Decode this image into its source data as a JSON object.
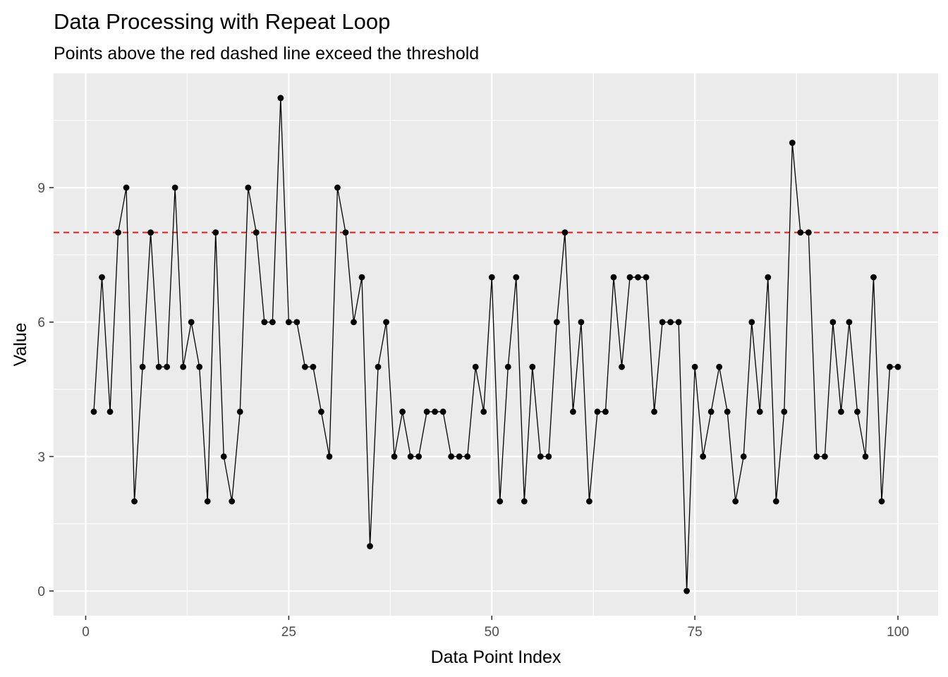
{
  "chart_data": {
    "type": "line",
    "title": "Data Processing with Repeat Loop",
    "subtitle": "Points above the red dashed line exceed the threshold",
    "xlabel": "Data Point Index",
    "ylabel": "Value",
    "xlim": [
      -3.95,
      104.95
    ],
    "ylim": [
      -0.55,
      11.55
    ],
    "x_ticks": [
      0,
      25,
      50,
      75,
      100
    ],
    "y_ticks": [
      0,
      3,
      6,
      9
    ],
    "x_tick_labels": [
      "0",
      "25",
      "50",
      "75",
      "100"
    ],
    "y_tick_labels": [
      "0",
      "3",
      "6",
      "9"
    ],
    "grid": true,
    "legend": "none",
    "threshold": 8,
    "colors": {
      "panel": "#ebebeb",
      "grid": "#ffffff",
      "line": "#000000",
      "point": "#000000",
      "threshold": "#e41a1c",
      "tick_text": "#4d4d4d",
      "tick_mark": "#333333"
    },
    "series": [
      {
        "x": [
          1,
          2,
          3,
          4,
          5,
          6,
          7,
          8,
          9,
          10,
          11,
          12,
          13,
          14,
          15,
          16,
          17,
          18,
          19,
          20,
          21,
          22,
          23,
          24,
          25,
          26,
          27,
          28,
          29,
          30,
          31,
          32,
          33,
          34,
          35,
          36,
          37,
          38,
          39,
          40,
          41,
          42,
          43,
          44,
          45,
          46,
          47,
          48,
          49,
          50,
          51,
          52,
          53,
          54,
          55,
          56,
          57,
          58,
          59,
          60,
          61,
          62,
          63,
          64,
          65,
          66,
          67,
          68,
          69,
          70,
          71,
          72,
          73,
          74,
          75,
          76,
          77,
          78,
          79,
          80,
          81,
          82,
          83,
          84,
          85,
          86,
          87,
          88,
          89,
          90,
          91,
          92,
          93,
          94,
          95,
          96,
          97,
          98,
          99,
          100
        ],
        "y": [
          4,
          7,
          4,
          8,
          9,
          2,
          5,
          8,
          5,
          5,
          9,
          5,
          6,
          5,
          2,
          8,
          3,
          2,
          4,
          9,
          8,
          6,
          6,
          11,
          6,
          6,
          5,
          5,
          4,
          3,
          9,
          8,
          6,
          7,
          1,
          5,
          6,
          3,
          4,
          3,
          3,
          4,
          4,
          4,
          3,
          3,
          3,
          5,
          4,
          7,
          2,
          5,
          7,
          2,
          5,
          3,
          3,
          6,
          8,
          4,
          6,
          2,
          4,
          4,
          7,
          5,
          7,
          7,
          7,
          4,
          6,
          6,
          6,
          0,
          5,
          3,
          4,
          5,
          4,
          2,
          3,
          6,
          4,
          7,
          2,
          4,
          10,
          8,
          8,
          3,
          3,
          6,
          4,
          6,
          4,
          3,
          7,
          2,
          5,
          5
        ]
      }
    ]
  }
}
